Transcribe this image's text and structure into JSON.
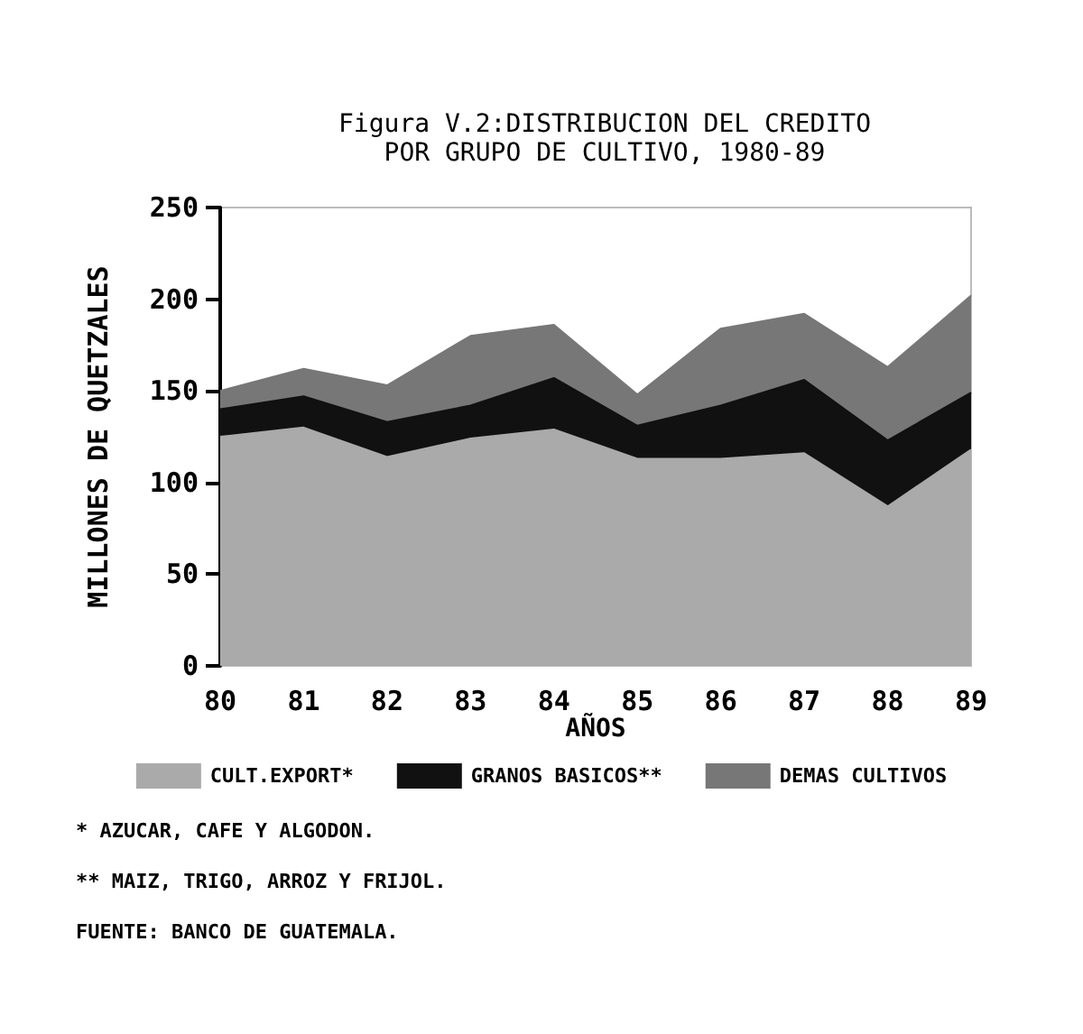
{
  "chart_data": {
    "type": "area",
    "title": "Figura V.2:DISTRIBUCION DEL CREDITO\nPOR GRUPO DE CULTIVO, 1980-89",
    "xlabel": "AÑOS",
    "ylabel": "MILLONES DE QUETZALES",
    "categories": [
      "80",
      "81",
      "82",
      "83",
      "84",
      "85",
      "86",
      "87",
      "88",
      "89"
    ],
    "stacked": true,
    "series": [
      {
        "name": "CULT.EXPORT*",
        "color": "#aaaaaa",
        "values": [
          125,
          130,
          114,
          124,
          129,
          113,
          113,
          116,
          87,
          118
        ]
      },
      {
        "name": "GRANOS BASICOS**",
        "color": "#111111",
        "values": [
          15,
          17,
          19,
          18,
          28,
          18,
          29,
          40,
          36,
          31
        ]
      },
      {
        "name": "DEMAS CULTIVOS",
        "color": "#777777",
        "values": [
          10,
          15,
          20,
          38,
          29,
          17,
          42,
          36,
          40,
          53
        ]
      }
    ],
    "ylim": [
      0,
      250
    ],
    "yticks": [
      0,
      50,
      100,
      150,
      200,
      250
    ],
    "grid": false,
    "legend": "bottom",
    "annotations": [
      "* AZUCAR, CAFE Y ALGODON.",
      "** MAIZ, TRIGO, ARROZ Y FRIJOL.",
      "FUENTE: BANCO DE GUATEMALA."
    ]
  }
}
